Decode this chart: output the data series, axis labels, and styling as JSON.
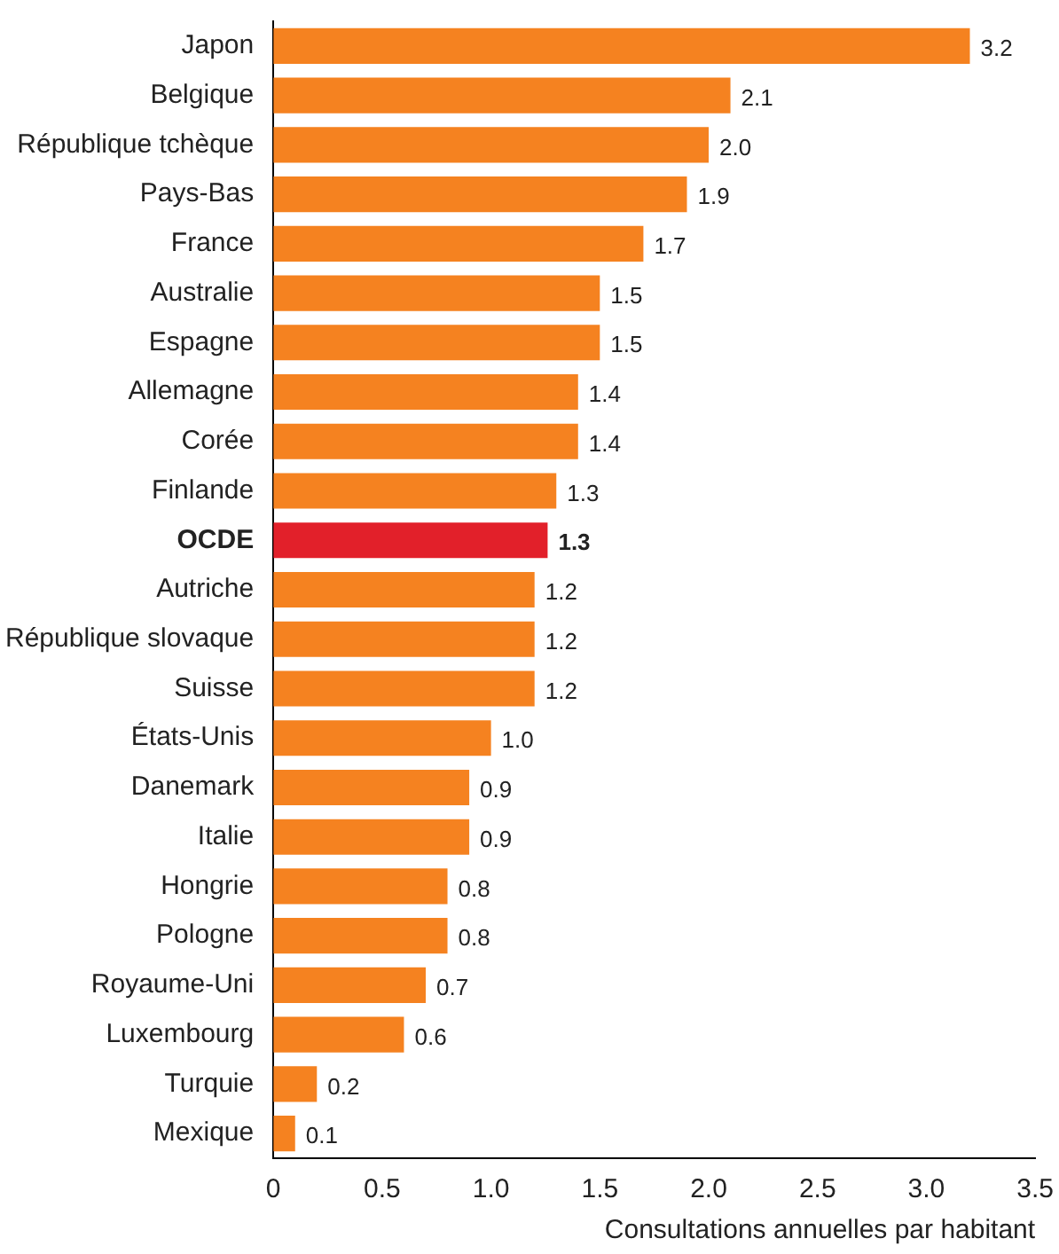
{
  "chart_data": {
    "type": "bar",
    "orientation": "horizontal",
    "xlabel": "Consultations annuelles par habitant",
    "categories": [
      "Japon",
      "Belgique",
      "République tchèque",
      "Pays-Bas",
      "France",
      "Australie",
      "Espagne",
      "Allemagne",
      "Corée",
      "Finlande",
      "OCDE",
      "Autriche",
      "République slovaque",
      "Suisse",
      "États-Unis",
      "Danemark",
      "Italie",
      "Hongrie",
      "Pologne",
      "Royaume-Uni",
      "Luxembourg",
      "Turquie",
      "Mexique"
    ],
    "values": [
      3.2,
      2.1,
      2.0,
      1.9,
      1.7,
      1.5,
      1.5,
      1.4,
      1.4,
      1.3,
      1.26,
      1.2,
      1.2,
      1.2,
      1.0,
      0.9,
      0.9,
      0.8,
      0.8,
      0.7,
      0.6,
      0.2,
      0.1
    ],
    "value_labels": [
      "3.2",
      "2.1",
      "2.0",
      "1.9",
      "1.7",
      "1.5",
      "1.5",
      "1.4",
      "1.4",
      "1.3",
      "1.3",
      "1.2",
      "1.2",
      "1.2",
      "1.0",
      "0.9",
      "0.9",
      "0.8",
      "0.8",
      "0.7",
      "0.6",
      "0.2",
      "0.1"
    ],
    "color": "#f58220",
    "colors": [
      "#f58220",
      "#f58220",
      "#f58220",
      "#f58220",
      "#f58220",
      "#f58220",
      "#f58220",
      "#f58220",
      "#f58220",
      "#f58220",
      "#e2202a",
      "#f58220",
      "#f58220",
      "#f58220",
      "#f58220",
      "#f58220",
      "#f58220",
      "#f58220",
      "#f58220",
      "#f58220",
      "#f58220",
      "#f58220",
      "#f58220"
    ],
    "xlim": [
      0,
      3.5
    ],
    "xticks": [
      0,
      0.5,
      {
        "value": 1,
        "label": "1.0"
      },
      1.5,
      {
        "value": 2,
        "label": "2.0"
      },
      2.5,
      {
        "value": 3,
        "label": "3.0"
      },
      3.5
    ],
    "grid": false,
    "legend": false
  }
}
